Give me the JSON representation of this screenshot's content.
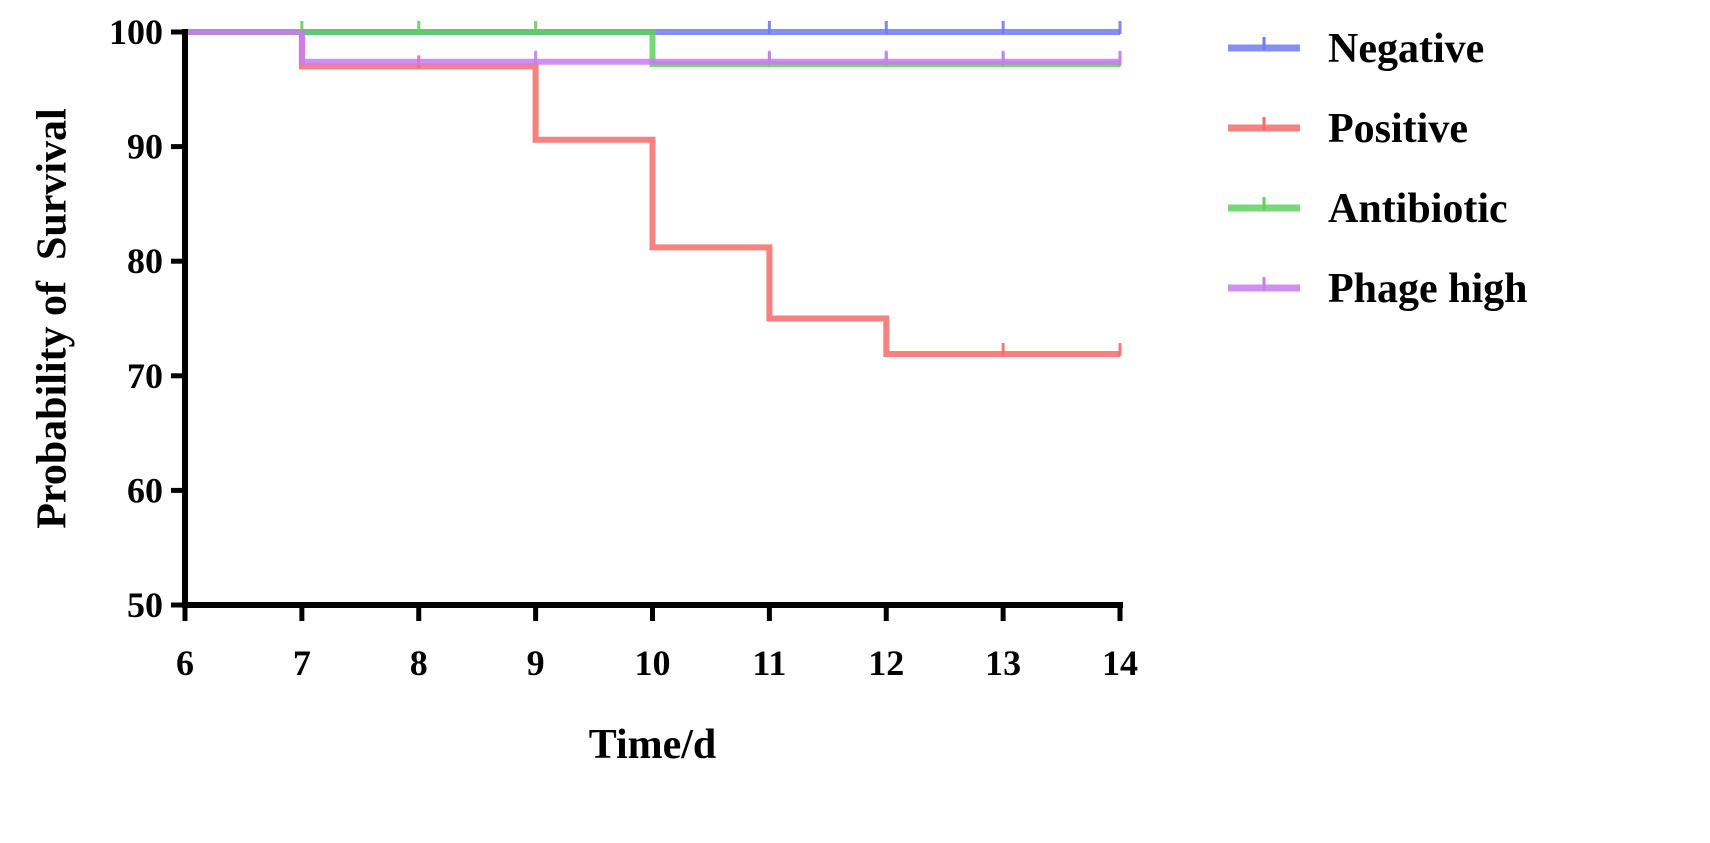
{
  "chart_data": {
    "type": "line",
    "step": true,
    "title": "",
    "xlabel": "Time/d",
    "ylabel": "Probability of  Survival",
    "xlim": [
      6,
      14
    ],
    "ylim": [
      50,
      100
    ],
    "x_ticks": [
      "6",
      "7",
      "8",
      "9",
      "10",
      "11",
      "12",
      "13",
      "14"
    ],
    "y_ticks": [
      "50",
      "60",
      "70",
      "80",
      "90",
      "100"
    ],
    "grid": false,
    "legend_position": "right",
    "series": [
      {
        "name": "Negative",
        "color": "#6f7bf0",
        "points": [
          [
            6,
            100
          ],
          [
            14,
            100
          ]
        ],
        "censor_ticks": [
          11,
          12,
          13,
          14
        ]
      },
      {
        "name": "Positive",
        "color": "#f56b6b",
        "points": [
          [
            6,
            100
          ],
          [
            7,
            100
          ],
          [
            7,
            97
          ],
          [
            9,
            97
          ],
          [
            9,
            90.6
          ],
          [
            10,
            90.6
          ],
          [
            10,
            81.2
          ],
          [
            11,
            81.2
          ],
          [
            11,
            75
          ],
          [
            12,
            75
          ],
          [
            12,
            71.9
          ],
          [
            14,
            71.9
          ]
        ],
        "censor_ticks": [
          8,
          13,
          14
        ]
      },
      {
        "name": "Antibiotic",
        "color": "#5fd15f",
        "points": [
          [
            6,
            100
          ],
          [
            10,
            100
          ],
          [
            10,
            97.2
          ],
          [
            14,
            97.2
          ]
        ],
        "censor_ticks": [
          7,
          8,
          9,
          11,
          12,
          13,
          14
        ]
      },
      {
        "name": "Phage high",
        "color": "#c77df0",
        "points": [
          [
            6,
            100
          ],
          [
            7,
            100
          ],
          [
            7,
            97.4
          ],
          [
            14,
            97.4
          ]
        ],
        "censor_ticks": [
          9,
          11,
          12,
          13,
          14
        ]
      }
    ]
  }
}
